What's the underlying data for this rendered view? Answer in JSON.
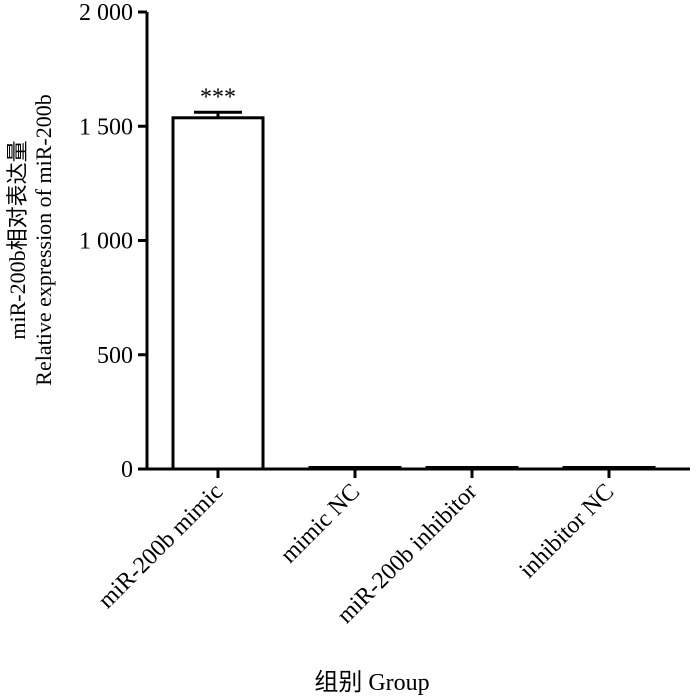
{
  "chart_data": {
    "type": "bar",
    "categories": [
      "miR-200b mimic",
      "mimic NC",
      "miR-200b inhibitor",
      "inhibitor NC"
    ],
    "values": [
      1537,
      1,
      1,
      1
    ],
    "errors": [
      24,
      0,
      0,
      0
    ],
    "annotations": [
      "***",
      "",
      "",
      ""
    ],
    "ylim": [
      0,
      2000
    ],
    "yticks": [
      0,
      500,
      1000,
      1500,
      2000
    ],
    "ytick_labels": [
      "0",
      "500",
      "1 000",
      "1 500",
      "2 000"
    ],
    "ylabel_line1": "miR-200b相对表达量",
    "ylabel_line2": "Relative expression of miR-200b",
    "xlabel": "组别  Group",
    "grid": false,
    "bar_fill": "#ffffff",
    "bar_stroke": "#000000"
  }
}
